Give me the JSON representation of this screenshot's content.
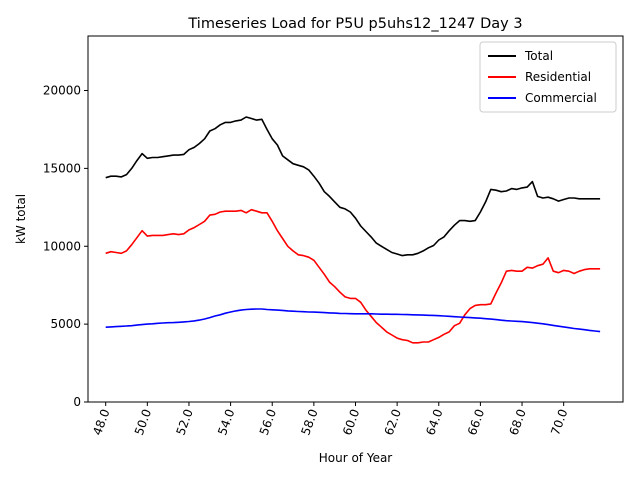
{
  "chart_data": {
    "type": "line",
    "title": "Timeseries Load for P5U p5uhs12_1247  Day 3",
    "xlabel": "Hour of Year",
    "ylabel": "kW total",
    "xlim": [
      47.15,
      72.85
    ],
    "ylim": [
      0,
      23500
    ],
    "xticks": [
      48,
      50,
      52,
      54,
      56,
      58,
      60,
      62,
      64,
      66,
      68,
      70
    ],
    "xtick_labels": [
      "48.0",
      "50.0",
      "52.0",
      "54.0",
      "56.0",
      "58.0",
      "60.0",
      "62.0",
      "64.0",
      "66.0",
      "68.0",
      "70.0"
    ],
    "yticks": [
      0,
      5000,
      10000,
      15000,
      20000
    ],
    "ytick_labels": [
      "0",
      "5000",
      "10000",
      "15000",
      "20000"
    ],
    "legend_position": "upper-right",
    "series": [
      {
        "name": "Total",
        "color": "#000000",
        "x": [
          48.0,
          48.25,
          48.5,
          48.75,
          49.0,
          49.25,
          49.5,
          49.75,
          50.0,
          50.25,
          50.5,
          50.75,
          51.0,
          51.25,
          51.5,
          51.75,
          52.0,
          52.25,
          52.5,
          52.75,
          53.0,
          53.25,
          53.5,
          53.75,
          54.0,
          54.25,
          54.5,
          54.75,
          55.0,
          55.25,
          55.5,
          55.75,
          56.0,
          56.25,
          56.5,
          56.75,
          57.0,
          57.25,
          57.5,
          57.75,
          58.0,
          58.25,
          58.5,
          58.75,
          59.0,
          59.25,
          59.5,
          59.75,
          60.0,
          60.25,
          60.5,
          60.75,
          61.0,
          61.25,
          61.5,
          61.75,
          62.0,
          62.25,
          62.5,
          62.75,
          63.0,
          63.25,
          63.5,
          63.75,
          64.0,
          64.25,
          64.5,
          64.75,
          65.0,
          65.25,
          65.5,
          65.75,
          66.0,
          66.25,
          66.5,
          66.75,
          67.0,
          67.25,
          67.5,
          67.75,
          68.0,
          68.25,
          68.5,
          68.75,
          69.0,
          69.25,
          69.5,
          69.75,
          70.0,
          70.25,
          70.5,
          70.75,
          71.0,
          71.25,
          71.5,
          71.75
        ],
        "values": [
          14400,
          14500,
          14500,
          14450,
          14600,
          15000,
          15500,
          15950,
          15650,
          15700,
          15700,
          15750,
          15800,
          15850,
          15850,
          15900,
          16200,
          16350,
          16600,
          16900,
          17400,
          17550,
          17800,
          17950,
          17950,
          18050,
          18100,
          18300,
          18200,
          18100,
          18150,
          17500,
          16900,
          16500,
          15800,
          15550,
          15300,
          15200,
          15100,
          14900,
          14500,
          14050,
          13500,
          13200,
          12850,
          12500,
          12400,
          12200,
          11800,
          11300,
          10950,
          10600,
          10200,
          10000,
          9800,
          9600,
          9500,
          9400,
          9450,
          9450,
          9550,
          9700,
          9900,
          10050,
          10400,
          10600,
          11000,
          11350,
          11650,
          11650,
          11600,
          11650,
          12200,
          12850,
          13650,
          13600,
          13500,
          13550,
          13700,
          13650,
          13750,
          13800,
          14150,
          13200,
          13100,
          13150,
          13050,
          12900,
          13000,
          13100,
          13100,
          13050,
          13050,
          13050,
          13050,
          13050
        ]
      },
      {
        "name": "Residential",
        "color": "#ff0000",
        "x": [
          48.0,
          48.25,
          48.5,
          48.75,
          49.0,
          49.25,
          49.5,
          49.75,
          50.0,
          50.25,
          50.5,
          50.75,
          51.0,
          51.25,
          51.5,
          51.75,
          52.0,
          52.25,
          52.5,
          52.75,
          53.0,
          53.25,
          53.5,
          53.75,
          54.0,
          54.25,
          54.5,
          54.75,
          55.0,
          55.25,
          55.5,
          55.75,
          56.0,
          56.25,
          56.5,
          56.75,
          57.0,
          57.25,
          57.5,
          57.75,
          58.0,
          58.25,
          58.5,
          58.75,
          59.0,
          59.25,
          59.5,
          59.75,
          60.0,
          60.25,
          60.5,
          60.75,
          61.0,
          61.25,
          61.5,
          61.75,
          62.0,
          62.25,
          62.5,
          62.75,
          63.0,
          63.25,
          63.5,
          63.75,
          64.0,
          64.25,
          64.5,
          64.75,
          65.0,
          65.25,
          65.5,
          65.75,
          66.0,
          66.25,
          66.5,
          66.75,
          67.0,
          67.25,
          67.5,
          67.75,
          68.0,
          68.25,
          68.5,
          68.75,
          69.0,
          69.25,
          69.5,
          69.75,
          70.0,
          70.25,
          70.5,
          70.75,
          71.0,
          71.25,
          71.5,
          71.75
        ],
        "values": [
          9550,
          9650,
          9600,
          9550,
          9700,
          10100,
          10550,
          11000,
          10650,
          10700,
          10700,
          10700,
          10750,
          10800,
          10750,
          10800,
          11050,
          11200,
          11400,
          11600,
          12000,
          12050,
          12200,
          12250,
          12250,
          12250,
          12300,
          12150,
          12350,
          12250,
          12150,
          12150,
          11600,
          11000,
          10500,
          10000,
          9700,
          9450,
          9400,
          9300,
          9100,
          8650,
          8200,
          7700,
          7400,
          7050,
          6750,
          6650,
          6650,
          6400,
          5900,
          5500,
          5100,
          4800,
          4500,
          4300,
          4100,
          4000,
          3950,
          3800,
          3800,
          3850,
          3850,
          4000,
          4150,
          4350,
          4500,
          4900,
          5050,
          5600,
          6000,
          6200,
          6250,
          6250,
          6300,
          7000,
          7650,
          8400,
          8450,
          8400,
          8400,
          8650,
          8600,
          8750,
          8850,
          9250,
          8400,
          8300,
          8450,
          8400,
          8250,
          8400,
          8500,
          8550,
          8550,
          8550
        ]
      },
      {
        "name": "Commercial",
        "color": "#0000ff",
        "x": [
          48.0,
          48.25,
          48.5,
          48.75,
          49.0,
          49.25,
          49.5,
          49.75,
          50.0,
          50.25,
          50.5,
          50.75,
          51.0,
          51.25,
          51.5,
          51.75,
          52.0,
          52.25,
          52.5,
          52.75,
          53.0,
          53.25,
          53.5,
          53.75,
          54.0,
          54.25,
          54.5,
          54.75,
          55.0,
          55.25,
          55.5,
          55.75,
          56.0,
          56.25,
          56.5,
          56.75,
          57.0,
          57.25,
          57.5,
          57.75,
          58.0,
          58.25,
          58.5,
          58.75,
          59.0,
          59.25,
          59.5,
          59.75,
          60.0,
          60.25,
          60.5,
          60.75,
          61.0,
          61.25,
          61.5,
          61.75,
          62.0,
          62.25,
          62.5,
          62.75,
          63.0,
          63.25,
          63.5,
          63.75,
          64.0,
          64.25,
          64.5,
          64.75,
          65.0,
          65.25,
          65.5,
          65.75,
          66.0,
          66.25,
          66.5,
          66.75,
          67.0,
          67.25,
          67.5,
          67.75,
          68.0,
          68.25,
          68.5,
          68.75,
          69.0,
          69.25,
          69.5,
          69.75,
          70.0,
          70.25,
          70.5,
          70.75,
          71.0,
          71.25,
          71.5,
          71.75
        ],
        "values": [
          4800,
          4820,
          4840,
          4860,
          4880,
          4900,
          4940,
          4970,
          5000,
          5020,
          5050,
          5070,
          5090,
          5100,
          5120,
          5140,
          5170,
          5210,
          5260,
          5330,
          5420,
          5520,
          5600,
          5700,
          5780,
          5850,
          5900,
          5940,
          5960,
          5970,
          5970,
          5940,
          5920,
          5900,
          5880,
          5850,
          5830,
          5810,
          5800,
          5780,
          5770,
          5760,
          5740,
          5720,
          5710,
          5690,
          5680,
          5670,
          5660,
          5660,
          5660,
          5660,
          5650,
          5640,
          5640,
          5630,
          5630,
          5620,
          5610,
          5600,
          5590,
          5580,
          5570,
          5560,
          5540,
          5520,
          5500,
          5480,
          5460,
          5440,
          5420,
          5400,
          5380,
          5350,
          5320,
          5290,
          5250,
          5220,
          5200,
          5180,
          5160,
          5130,
          5100,
          5060,
          5020,
          4970,
          4920,
          4870,
          4820,
          4770,
          4720,
          4680,
          4640,
          4600,
          4560,
          4520
        ]
      }
    ]
  }
}
